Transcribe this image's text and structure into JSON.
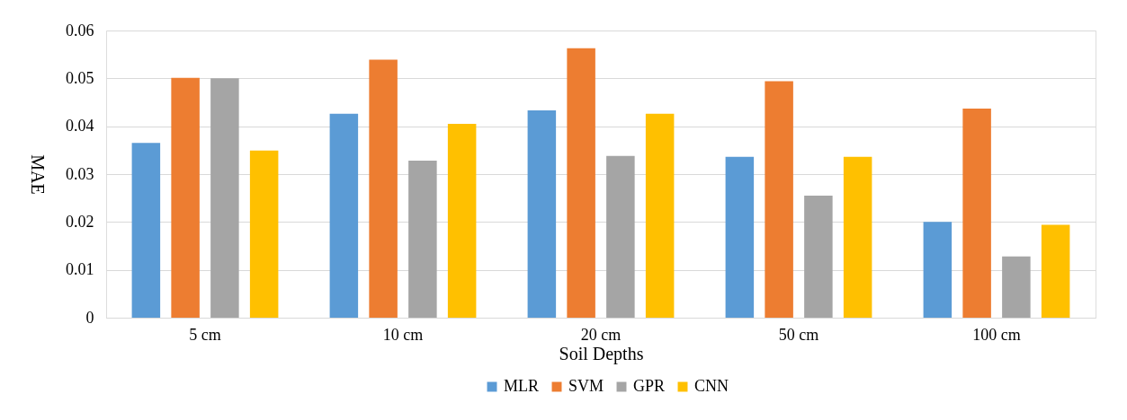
{
  "chart_data": {
    "type": "bar",
    "xlabel": "Soil Depths",
    "ylabel": "MAE",
    "categories": [
      "5 cm",
      "10 cm",
      "20 cm",
      "50 cm",
      "100 cm"
    ],
    "series": [
      {
        "name": "MLR",
        "color": "#5b9bd5",
        "values": [
          0.0365,
          0.0426,
          0.0433,
          0.0336,
          0.02
        ]
      },
      {
        "name": "SVM",
        "color": "#ed7d31",
        "values": [
          0.0501,
          0.0539,
          0.0563,
          0.0494,
          0.0437
        ]
      },
      {
        "name": "GPR",
        "color": "#a5a5a5",
        "values": [
          0.05,
          0.0328,
          0.0338,
          0.0255,
          0.0128
        ]
      },
      {
        "name": "CNN",
        "color": "#ffc000",
        "values": [
          0.0349,
          0.0405,
          0.0426,
          0.0336,
          0.0194
        ]
      }
    ],
    "ylim": [
      0,
      0.06
    ],
    "yticks": [
      0,
      0.01,
      0.02,
      0.03,
      0.04,
      0.05,
      0.06
    ],
    "grid": "y",
    "legend": "bottom"
  }
}
